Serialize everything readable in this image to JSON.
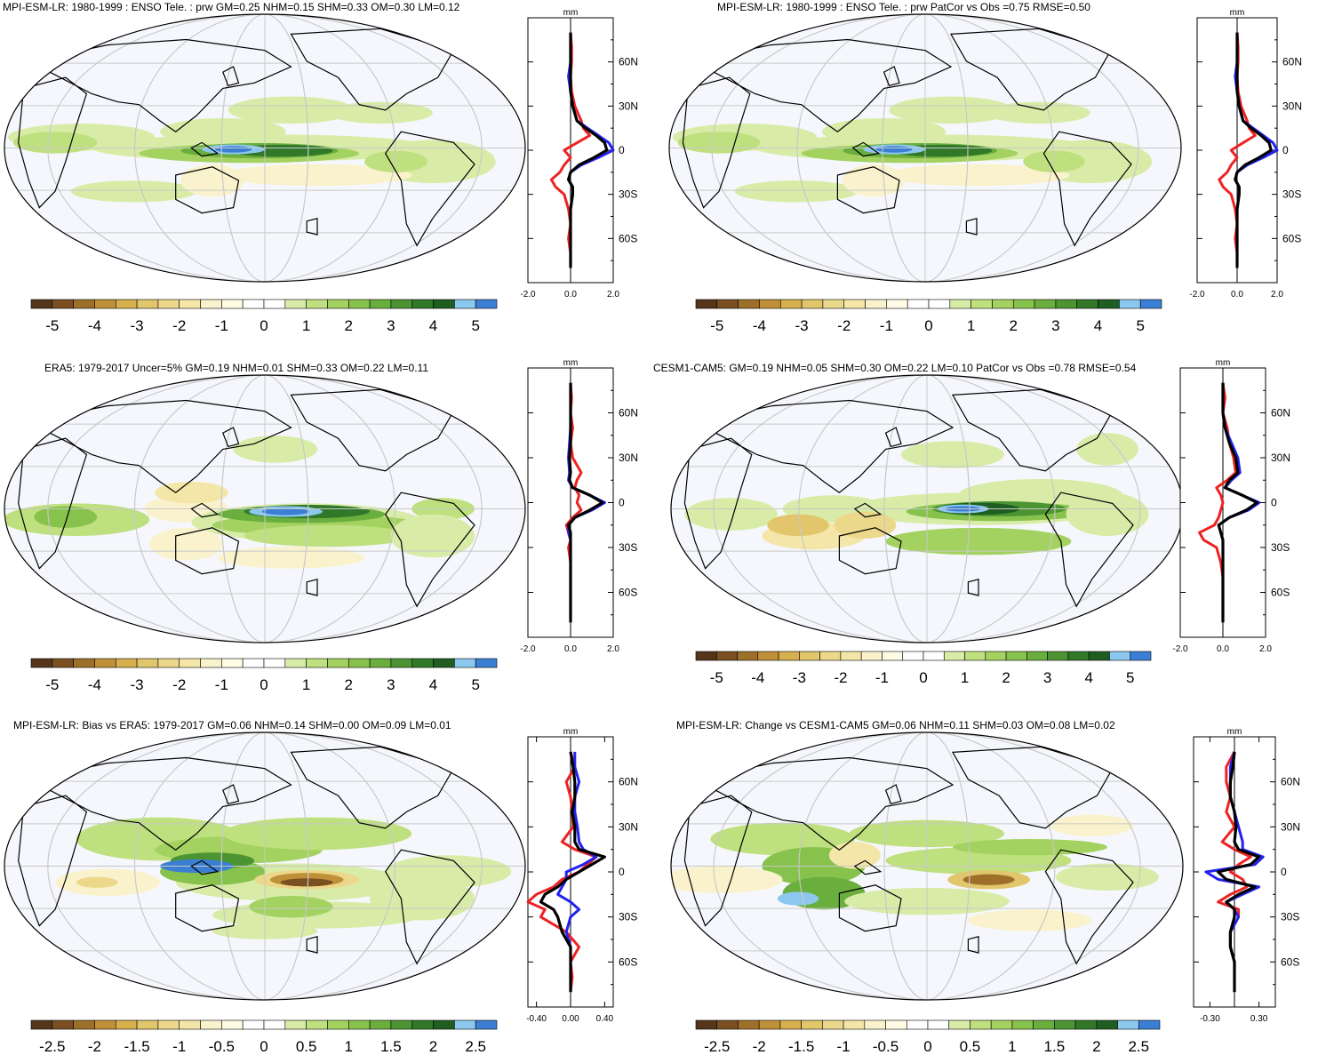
{
  "colors": {
    "positive_ramp": [
      "#f5f8fd",
      "#d8eca8",
      "#bfe07e",
      "#a4d260",
      "#87c24c",
      "#6aae3e",
      "#4c9432",
      "#317828",
      "#1f5e20",
      "#8cc8ee",
      "#3a7fd4"
    ],
    "negative_ramp": [
      "#f5f8fd",
      "#faf2cc",
      "#f4e6a8",
      "#ecd88a",
      "#e2c66c",
      "#d6af4e",
      "#c09038",
      "#9e6f28",
      "#7a5022",
      "#56361a"
    ],
    "land_outline": "#000000",
    "grid": "#c8c8c8",
    "ocean_background": "#f5f7fc",
    "series_red": "#ee2222",
    "series_blue": "#2222ee",
    "series_black": "#000000"
  },
  "colorbar_a": {
    "labels": [
      "-5",
      "-4",
      "-3",
      "-2",
      "-1",
      "0",
      "1",
      "2",
      "3",
      "4",
      "5"
    ],
    "swatches": [
      "#56361a",
      "#7a5022",
      "#9e6f28",
      "#c09038",
      "#d6af4e",
      "#e2c66c",
      "#ecd88a",
      "#f4e6a8",
      "#faf2cc",
      "#fffbe4",
      "#ffffff",
      "#ffffff",
      "#d8eca8",
      "#bfe07e",
      "#a4d260",
      "#87c24c",
      "#6aae3e",
      "#4c9432",
      "#317828",
      "#1f5e20",
      "#8cc8ee",
      "#3a7fd4"
    ]
  },
  "colorbar_b": {
    "labels": [
      "-2.5",
      "-2",
      "-1.5",
      "-1",
      "-0.5",
      "0",
      "0.5",
      "1",
      "1.5",
      "2",
      "2.5"
    ],
    "swatches": [
      "#56361a",
      "#7a5022",
      "#9e6f28",
      "#c09038",
      "#d6af4e",
      "#e2c66c",
      "#ecd88a",
      "#f4e6a8",
      "#faf2cc",
      "#fffbe4",
      "#ffffff",
      "#ffffff",
      "#d8eca8",
      "#bfe07e",
      "#a4d260",
      "#87c24c",
      "#6aae3e",
      "#4c9432",
      "#317828",
      "#1f5e20",
      "#8cc8ee",
      "#3a7fd4"
    ]
  },
  "zonal_axis": {
    "unit": "mm",
    "lat_ticks": [
      "60N",
      "30N",
      "0",
      "30S",
      "60S"
    ]
  },
  "chart_data": [
    {
      "type": "heatmap",
      "title": "MPI-ESM-LR: 1980-1999 : ENSO Tele. : prw GM=0.25 NHM=0.15 SHM=0.33 OM=0.30 LM=0.12",
      "pattern": "model",
      "zonal": {
        "xlim": [
          -2.0,
          2.0
        ],
        "xticks": [
          "-2.0",
          "0.0",
          "2.0"
        ],
        "lat": [
          80,
          70,
          60,
          50,
          40,
          30,
          20,
          15,
          10,
          5,
          0,
          -5,
          -10,
          -15,
          -20,
          -25,
          -30,
          -40,
          -50,
          -60,
          -70,
          -80
        ],
        "series": [
          {
            "name": "red",
            "values": [
              0.0,
              0.05,
              0.05,
              0.0,
              0.05,
              0.2,
              0.5,
              0.6,
              0.9,
              0.3,
              -0.3,
              0.0,
              -0.3,
              -0.5,
              -0.9,
              -0.7,
              -0.3,
              -0.1,
              0.0,
              -0.1,
              0.0,
              0.0
            ]
          },
          {
            "name": "blue",
            "values": [
              0.0,
              0.0,
              0.0,
              -0.1,
              0.0,
              0.1,
              0.3,
              0.8,
              1.3,
              1.8,
              2.0,
              1.3,
              0.5,
              0.0,
              -0.1,
              0.1,
              0.1,
              0.0,
              0.0,
              0.0,
              0.0,
              0.0
            ]
          },
          {
            "name": "black",
            "values": [
              0.0,
              0.0,
              0.0,
              0.0,
              0.0,
              0.1,
              0.3,
              0.7,
              1.2,
              1.6,
              1.7,
              1.1,
              0.4,
              0.0,
              -0.1,
              0.1,
              0.1,
              0.0,
              0.0,
              0.0,
              0.0,
              0.0
            ]
          }
        ]
      }
    },
    {
      "type": "heatmap",
      "title": "MPI-ESM-LR: 1980-1999 : ENSO Tele. : prw PatCor vs Obs =0.75 RMSE=0.50",
      "pattern": "model",
      "zonal": {
        "xlim": [
          -2.0,
          2.0
        ],
        "xticks": [
          "-2.0",
          "0.0",
          "2.0"
        ],
        "lat": [
          80,
          70,
          60,
          50,
          40,
          30,
          20,
          15,
          10,
          5,
          0,
          -5,
          -10,
          -15,
          -20,
          -25,
          -30,
          -40,
          -50,
          -60,
          -70,
          -80
        ],
        "series": [
          {
            "name": "red",
            "values": [
              0.0,
              0.05,
              0.05,
              0.0,
              0.05,
              0.2,
              0.5,
              0.6,
              0.9,
              0.3,
              -0.3,
              0.0,
              -0.3,
              -0.5,
              -0.9,
              -0.7,
              -0.3,
              -0.1,
              0.0,
              -0.1,
              0.0,
              0.0
            ]
          },
          {
            "name": "blue",
            "values": [
              0.0,
              0.0,
              0.0,
              -0.1,
              0.0,
              0.1,
              0.3,
              0.8,
              1.3,
              1.8,
              2.0,
              1.3,
              0.5,
              0.0,
              -0.1,
              0.1,
              0.1,
              0.0,
              0.0,
              0.0,
              0.0,
              0.0
            ]
          },
          {
            "name": "black",
            "values": [
              0.0,
              0.0,
              0.0,
              0.0,
              0.0,
              0.1,
              0.3,
              0.7,
              1.2,
              1.6,
              1.7,
              1.1,
              0.4,
              0.0,
              -0.1,
              0.1,
              0.1,
              0.0,
              0.0,
              0.0,
              0.0,
              0.0
            ]
          }
        ]
      }
    },
    {
      "type": "heatmap",
      "title": "ERA5: 1979-2017 Uncer=5% GM=0.19 NHM=0.01 SHM=0.33 OM=0.22 LM=0.11",
      "pattern": "obs",
      "zonal": {
        "xlim": [
          -2.0,
          2.0
        ],
        "xticks": [
          "-2.0",
          "0.0",
          "2.0"
        ],
        "lat": [
          80,
          70,
          60,
          50,
          40,
          30,
          20,
          15,
          10,
          5,
          0,
          -5,
          -10,
          -15,
          -20,
          -25,
          -30,
          -40,
          -50,
          -60,
          -70,
          -80
        ],
        "series": [
          {
            "name": "red",
            "values": [
              0.0,
              0.05,
              0.0,
              0.1,
              0.0,
              0.1,
              0.5,
              0.3,
              0.2,
              0.4,
              0.3,
              0.5,
              0.1,
              -0.2,
              -0.1,
              0.0,
              -0.1,
              0.0,
              0.0,
              0.0,
              0.0,
              0.0
            ]
          },
          {
            "name": "blue",
            "values": [
              0.0,
              0.0,
              0.0,
              0.0,
              -0.05,
              -0.1,
              -0.05,
              -0.1,
              0.1,
              0.9,
              1.6,
              1.0,
              0.2,
              -0.1,
              -0.1,
              0.0,
              0.0,
              0.0,
              0.0,
              0.0,
              0.0,
              0.0
            ]
          },
          {
            "name": "black",
            "values": [
              0.0,
              0.0,
              0.0,
              0.0,
              0.0,
              -0.05,
              0.0,
              -0.05,
              0.1,
              0.9,
              1.5,
              0.9,
              0.2,
              -0.1,
              0.0,
              0.0,
              0.0,
              0.0,
              0.0,
              0.0,
              0.0,
              0.0
            ]
          }
        ]
      }
    },
    {
      "type": "heatmap",
      "title": "CESM1-CAM5: GM=0.19 NHM=0.05 SHM=0.30 OM=0.22 LM=0.10 PatCor vs Obs =0.78 RMSE=0.54",
      "pattern": "model2",
      "zonal": {
        "xlim": [
          -2.0,
          2.0
        ],
        "xticks": [
          "-2.0",
          "0.0",
          "2.0"
        ],
        "lat": [
          80,
          70,
          60,
          50,
          40,
          30,
          20,
          15,
          10,
          5,
          0,
          -5,
          -10,
          -15,
          -20,
          -25,
          -30,
          -40,
          -50,
          -60,
          -70,
          -80
        ],
        "series": [
          {
            "name": "red",
            "values": [
              0.0,
              0.1,
              0.0,
              0.2,
              0.3,
              0.5,
              0.6,
              0.2,
              -0.3,
              -0.1,
              0.0,
              -0.1,
              -0.2,
              -0.4,
              -1.1,
              -0.9,
              -0.3,
              -0.1,
              0.0,
              0.0,
              0.0,
              0.0
            ]
          },
          {
            "name": "blue",
            "values": [
              0.0,
              0.0,
              0.0,
              0.1,
              0.4,
              0.7,
              0.8,
              0.4,
              0.1,
              0.9,
              1.7,
              1.2,
              0.3,
              -0.2,
              -0.1,
              0.0,
              0.0,
              0.0,
              0.0,
              0.0,
              0.0,
              0.0
            ]
          },
          {
            "name": "black",
            "values": [
              0.0,
              0.0,
              0.0,
              0.1,
              0.3,
              0.6,
              0.7,
              0.3,
              0.1,
              0.9,
              1.6,
              1.1,
              0.3,
              -0.2,
              -0.1,
              0.0,
              0.0,
              0.0,
              0.0,
              0.0,
              0.0,
              0.0
            ]
          }
        ]
      }
    },
    {
      "type": "heatmap",
      "title": "MPI-ESM-LR: Bias vs ERA5: 1979-2017 GM=0.06 NHM=0.14 SHM=0.00 OM=0.09 LM=0.01",
      "pattern": "bias",
      "zonal": {
        "xlim": [
          -0.5,
          0.5
        ],
        "xticks": [
          "-0.40",
          "0.00",
          "0.40"
        ],
        "lat": [
          80,
          70,
          60,
          50,
          40,
          30,
          20,
          15,
          10,
          5,
          0,
          -5,
          -10,
          -15,
          -20,
          -25,
          -30,
          -40,
          -50,
          -60,
          -70,
          -80
        ],
        "series": [
          {
            "name": "red",
            "values": [
              0.0,
              0.05,
              -0.05,
              0.0,
              0.02,
              0.03,
              -0.1,
              0.05,
              0.3,
              0.2,
              0.1,
              -0.1,
              -0.2,
              -0.4,
              -0.5,
              -0.3,
              -0.35,
              -0.05,
              0.1,
              0.0,
              0.02,
              0.0
            ]
          },
          {
            "name": "blue",
            "values": [
              0.05,
              0.05,
              0.1,
              0.05,
              0.05,
              0.08,
              0.1,
              0.15,
              0.3,
              0.15,
              -0.05,
              -0.05,
              -0.1,
              -0.15,
              0.0,
              0.1,
              0.0,
              -0.05,
              0.0,
              0.0,
              0.0,
              0.0
            ]
          },
          {
            "name": "black",
            "values": [
              0.0,
              0.03,
              0.05,
              0.05,
              0.02,
              0.05,
              0.05,
              0.1,
              0.4,
              0.25,
              0.1,
              -0.05,
              -0.15,
              -0.3,
              -0.35,
              -0.2,
              -0.15,
              -0.1,
              0.0,
              0.0,
              0.0,
              0.0
            ]
          }
        ]
      }
    },
    {
      "type": "heatmap",
      "title": "MPI-ESM-LR: Change vs CESM1-CAM5 GM=0.06 NHM=0.11 SHM=0.03 OM=0.08 LM=0.02",
      "pattern": "change",
      "zonal": {
        "xlim": [
          -0.5,
          0.5
        ],
        "xticks": [
          "-0.30",
          "0.30"
        ],
        "lat": [
          80,
          70,
          60,
          50,
          40,
          30,
          20,
          15,
          10,
          5,
          0,
          -5,
          -10,
          -15,
          -20,
          -25,
          -30,
          -40,
          -50,
          -60,
          -70,
          -80
        ],
        "series": [
          {
            "name": "red",
            "values": [
              0.0,
              -0.1,
              -0.1,
              -0.05,
              -0.1,
              0.0,
              -0.15,
              0.0,
              0.2,
              0.05,
              -0.05,
              0.1,
              0.15,
              -0.05,
              -0.2,
              0.05,
              0.05,
              -0.05,
              -0.05,
              0.0,
              0.0,
              0.0
            ]
          },
          {
            "name": "blue",
            "values": [
              0.0,
              -0.05,
              -0.05,
              -0.05,
              0.0,
              0.05,
              0.1,
              0.1,
              0.35,
              0.25,
              -0.35,
              -0.2,
              0.3,
              0.1,
              -0.1,
              0.0,
              0.05,
              -0.05,
              -0.05,
              0.0,
              0.0,
              0.0
            ]
          },
          {
            "name": "black",
            "values": [
              0.0,
              -0.02,
              -0.05,
              -0.05,
              0.0,
              0.02,
              0.0,
              0.05,
              0.3,
              0.2,
              -0.2,
              -0.1,
              0.25,
              0.05,
              -0.1,
              0.0,
              0.0,
              -0.05,
              -0.05,
              0.0,
              0.0,
              0.0
            ]
          }
        ]
      }
    }
  ]
}
